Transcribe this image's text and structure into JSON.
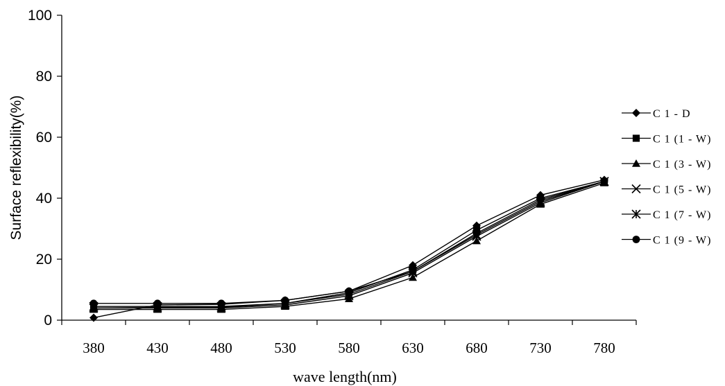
{
  "chart_data": {
    "type": "line",
    "title": "",
    "xlabel": "wave length(nm)",
    "ylabel": "Surface reflexibility(%)",
    "categories": [
      "380",
      "430",
      "480",
      "530",
      "580",
      "630",
      "680",
      "730",
      "780"
    ],
    "ylim": [
      0,
      100
    ],
    "yticks": [
      0,
      20,
      40,
      60,
      80,
      100
    ],
    "grid": false,
    "legend_position": "right",
    "series": [
      {
        "name": "C 1 - D",
        "marker": "diamond",
        "values": [
          0.8,
          5.0,
          5.2,
          6.5,
          9.5,
          18.0,
          31.0,
          41.0,
          46.0
        ]
      },
      {
        "name": "C 1 (1 - W)",
        "marker": "square",
        "values": [
          4.0,
          4.2,
          4.2,
          5.5,
          9.0,
          16.5,
          29.5,
          40.0,
          45.5
        ]
      },
      {
        "name": "C 1 (3 - W)",
        "marker": "triangle",
        "values": [
          3.5,
          3.5,
          3.5,
          4.5,
          7.0,
          14.0,
          26.0,
          38.0,
          45.0
        ]
      },
      {
        "name": "C 1 (5 - W)",
        "marker": "x",
        "values": [
          4.5,
          4.5,
          4.5,
          5.5,
          8.5,
          16.0,
          28.0,
          39.0,
          45.5
        ]
      },
      {
        "name": "C 1 (7 - W)",
        "marker": "star",
        "values": [
          4.0,
          4.0,
          4.0,
          5.0,
          8.0,
          15.5,
          27.5,
          38.5,
          45.5
        ]
      },
      {
        "name": "C 1 (9 - W)",
        "marker": "circle",
        "values": [
          5.5,
          5.5,
          5.5,
          6.5,
          9.5,
          16.0,
          28.5,
          39.5,
          45.5
        ]
      }
    ]
  }
}
